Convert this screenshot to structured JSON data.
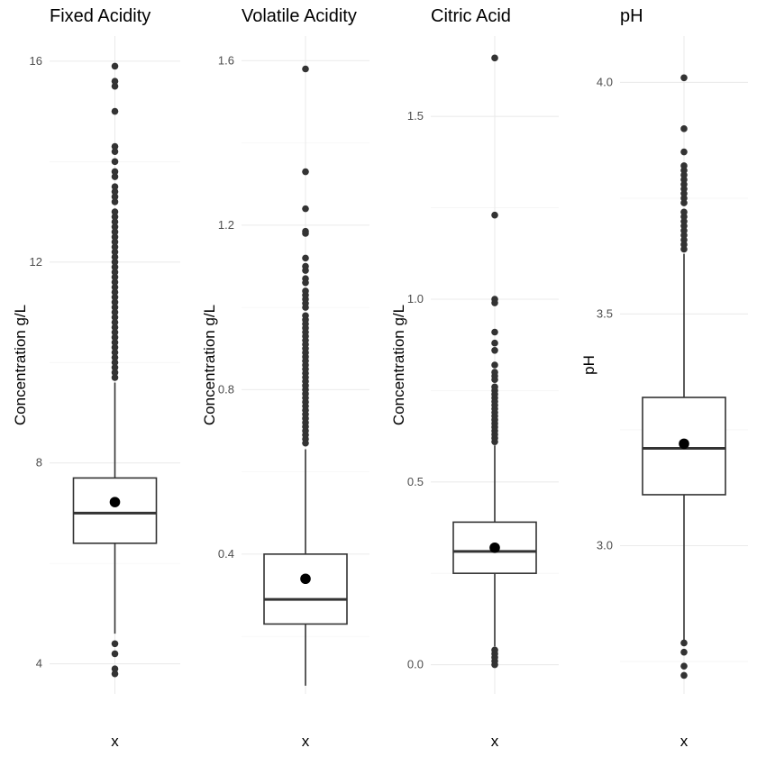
{
  "chart_data": [
    {
      "type": "boxplot",
      "title": "Fixed Acidity",
      "ylabel": "Concentration g/L",
      "xlabel": "x",
      "category": "x",
      "yticks": [
        4,
        8,
        12,
        16
      ],
      "ylim": [
        3.4,
        16.5
      ],
      "grid": true,
      "stats": {
        "min": 4.6,
        "q1": 6.4,
        "median": 7.0,
        "q3": 7.7,
        "max": 9.6
      },
      "mean": 7.22,
      "outliers": [
        3.8,
        3.9,
        4.2,
        4.4,
        9.7,
        9.8,
        9.9,
        10.0,
        10.1,
        10.2,
        10.3,
        10.4,
        10.5,
        10.6,
        10.7,
        10.8,
        10.9,
        11.0,
        11.1,
        11.2,
        11.3,
        11.4,
        11.5,
        11.6,
        11.7,
        11.8,
        11.9,
        12.0,
        12.1,
        12.2,
        12.3,
        12.4,
        12.5,
        12.6,
        12.7,
        12.8,
        12.9,
        13.0,
        13.2,
        13.3,
        13.4,
        13.5,
        13.7,
        13.8,
        14.0,
        14.2,
        14.3,
        15.0,
        15.5,
        15.6,
        15.9
      ]
    },
    {
      "type": "boxplot",
      "title": "Volatile Acidity",
      "ylabel": "Concentration g/L",
      "xlabel": "x",
      "category": "x",
      "yticks": [
        0.4,
        0.8,
        1.2,
        1.6
      ],
      "ylim": [
        0.06,
        1.66
      ],
      "grid": true,
      "stats": {
        "min": 0.08,
        "q1": 0.23,
        "median": 0.29,
        "q3": 0.4,
        "max": 0.655
      },
      "mean": 0.34,
      "outliers": [
        0.67,
        0.68,
        0.69,
        0.7,
        0.71,
        0.72,
        0.73,
        0.74,
        0.75,
        0.76,
        0.77,
        0.78,
        0.79,
        0.8,
        0.81,
        0.82,
        0.83,
        0.84,
        0.85,
        0.86,
        0.87,
        0.88,
        0.89,
        0.9,
        0.91,
        0.92,
        0.93,
        0.94,
        0.95,
        0.96,
        0.97,
        0.98,
        1.0,
        1.01,
        1.02,
        1.03,
        1.04,
        1.06,
        1.07,
        1.09,
        1.1,
        1.12,
        1.18,
        1.185,
        1.24,
        1.33,
        1.58
      ]
    },
    {
      "type": "boxplot",
      "title": "Citric Acid",
      "ylabel": "Concentration g/L",
      "xlabel": "x",
      "category": "x",
      "yticks": [
        0.0,
        0.5,
        1.0,
        1.5
      ],
      "ylim": [
        -0.08,
        1.72
      ],
      "grid": true,
      "stats": {
        "min": 0.05,
        "q1": 0.25,
        "median": 0.31,
        "q3": 0.39,
        "max": 0.6
      },
      "mean": 0.32,
      "outliers": [
        0.0,
        0.01,
        0.02,
        0.03,
        0.04,
        0.61,
        0.62,
        0.63,
        0.64,
        0.65,
        0.66,
        0.67,
        0.68,
        0.69,
        0.7,
        0.71,
        0.72,
        0.73,
        0.74,
        0.75,
        0.76,
        0.78,
        0.79,
        0.8,
        0.82,
        0.86,
        0.88,
        0.91,
        0.99,
        1.0,
        1.23,
        1.66
      ]
    },
    {
      "type": "boxplot",
      "title": "pH",
      "ylabel": "pH",
      "xlabel": "x",
      "category": "x",
      "yticks": [
        3.0,
        3.5,
        4.0
      ],
      "ylim": [
        2.68,
        4.1
      ],
      "grid": true,
      "stats": {
        "min": 2.79,
        "q1": 3.11,
        "median": 3.21,
        "q3": 3.32,
        "max": 3.63
      },
      "mean": 3.22,
      "outliers": [
        2.72,
        2.74,
        2.77,
        2.79,
        3.64,
        3.65,
        3.66,
        3.67,
        3.68,
        3.69,
        3.7,
        3.71,
        3.72,
        3.74,
        3.75,
        3.76,
        3.77,
        3.78,
        3.79,
        3.8,
        3.81,
        3.82,
        3.85,
        3.9,
        4.01
      ]
    }
  ]
}
